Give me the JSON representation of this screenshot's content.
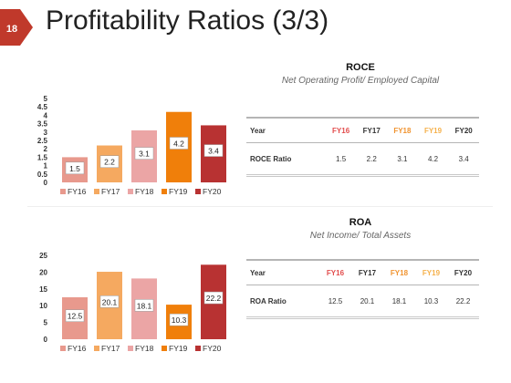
{
  "slide": {
    "number": "18",
    "title": "Profitability Ratios (3/3)",
    "colors": {
      "badge": "#c0392b",
      "fy16": "#e8998d",
      "fy17": "#f5a960",
      "fy18": "#eba5a5",
      "fy19": "#f07f0a",
      "fy20": "#b83232",
      "fy16_text": "#e24c4c",
      "fy18_text": "#f0932f",
      "fy19_text": "#f5b14c"
    }
  },
  "roce": {
    "title": "ROCE",
    "subtitle": "Net Operating Profit/ Employed Capital",
    "table": {
      "header": [
        "Year",
        "FY16",
        "FY17",
        "FY18",
        "FY19",
        "FY20"
      ],
      "row_label": "ROCE Ratio",
      "values": [
        "1.5",
        "2.2",
        "3.1",
        "4.2",
        "3.4"
      ]
    }
  },
  "roa": {
    "title": "ROA",
    "subtitle": "Net Income/ Total Assets",
    "table": {
      "header": [
        "Year",
        "FY16",
        "FY17",
        "FY18",
        "FY19",
        "FY20"
      ],
      "row_label": "ROA Ratio",
      "values": [
        "12.5",
        "20.1",
        "18.1",
        "10.3",
        "22.2"
      ]
    }
  },
  "chart_data": [
    {
      "type": "bar",
      "categories": [
        "FY16",
        "FY17",
        "FY18",
        "FY19",
        "FY20"
      ],
      "values": [
        1.5,
        2.2,
        3.1,
        4.2,
        3.4
      ],
      "value_labels": [
        "1.5",
        "2.2",
        "3.1",
        "4.2",
        "3.4"
      ],
      "yticks": [
        "0",
        "0.5",
        "1",
        "1.5",
        "2",
        "2.5",
        "3",
        "3.5",
        "4",
        "4.5",
        "5"
      ],
      "ylim": [
        0,
        5
      ],
      "legend": [
        "FY16",
        "FY17",
        "FY18",
        "FY19",
        "FY20"
      ],
      "legend_position": "bottom",
      "grid": false
    },
    {
      "type": "bar",
      "categories": [
        "FY16",
        "FY17",
        "FY18",
        "FY19",
        "FY20"
      ],
      "values": [
        12.5,
        20.1,
        18.1,
        10.3,
        22.2
      ],
      "value_labels": [
        "12.5",
        "20.1",
        "18.1",
        "10.3",
        "22.2"
      ],
      "yticks": [
        "0",
        "5",
        "10",
        "15",
        "20",
        "25"
      ],
      "ylim": [
        0,
        25
      ],
      "legend": [
        "FY16",
        "FY17",
        "FY18",
        "FY19",
        "FY20"
      ],
      "legend_position": "bottom",
      "grid": false
    }
  ]
}
